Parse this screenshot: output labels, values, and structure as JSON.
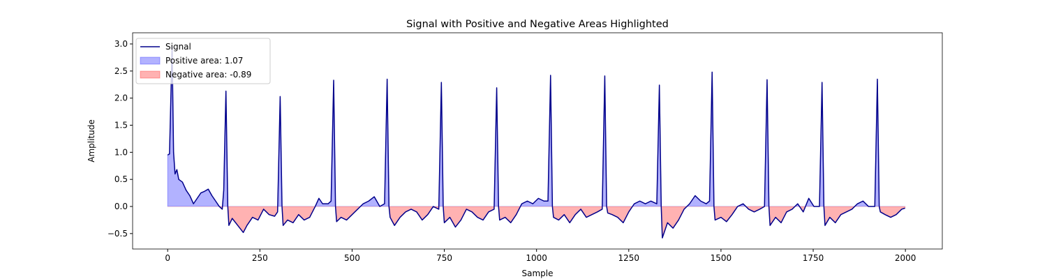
{
  "chart_data": {
    "type": "line",
    "title": "Signal with Positive and Negative Areas Highlighted",
    "xlabel": "Sample",
    "ylabel": "Amplitude",
    "xlim": [
      -95,
      2100
    ],
    "ylim": [
      -0.785,
      3.206
    ],
    "xticks": [
      0,
      250,
      500,
      750,
      1000,
      1250,
      1500,
      1750,
      2000
    ],
    "yticks": [
      {
        "value": -0.5,
        "label": "−0.5"
      },
      {
        "value": 0,
        "label": "0.0"
      },
      {
        "value": 0.5,
        "label": "0.5"
      },
      {
        "value": 1,
        "label": "1.0"
      },
      {
        "value": 1.5,
        "label": "1.5"
      },
      {
        "value": 2,
        "label": "2.0"
      },
      {
        "value": 2.5,
        "label": "2.5"
      },
      {
        "value": 3,
        "label": "3.0"
      }
    ],
    "legend": "upper left",
    "x": [
      0,
      5,
      12,
      16,
      20,
      25,
      30,
      40,
      50,
      60,
      70,
      80,
      90,
      100,
      110,
      120,
      130,
      140,
      148,
      152,
      158,
      163,
      166,
      175,
      190,
      205,
      215,
      230,
      245,
      260,
      275,
      290,
      298,
      305,
      310,
      313,
      325,
      340,
      355,
      370,
      385,
      400,
      410,
      420,
      435,
      443,
      450,
      455,
      458,
      470,
      485,
      500,
      515,
      530,
      545,
      560,
      575,
      588,
      595,
      600,
      603,
      615,
      630,
      645,
      660,
      675,
      690,
      705,
      720,
      735,
      742,
      747,
      750,
      765,
      780,
      795,
      810,
      825,
      840,
      855,
      870,
      885,
      892,
      897,
      900,
      915,
      930,
      945,
      960,
      975,
      990,
      1005,
      1020,
      1031,
      1038,
      1043,
      1046,
      1060,
      1075,
      1090,
      1105,
      1120,
      1135,
      1150,
      1165,
      1178,
      1185,
      1190,
      1193,
      1205,
      1220,
      1235,
      1250,
      1265,
      1280,
      1295,
      1310,
      1326,
      1333,
      1338,
      1341,
      1355,
      1370,
      1385,
      1400,
      1415,
      1430,
      1445,
      1460,
      1469,
      1476,
      1481,
      1484,
      1500,
      1515,
      1530,
      1545,
      1560,
      1575,
      1590,
      1605,
      1618,
      1625,
      1630,
      1633,
      1648,
      1663,
      1678,
      1693,
      1708,
      1723,
      1738,
      1752,
      1767,
      1774,
      1779,
      1782,
      1795,
      1810,
      1825,
      1840,
      1855,
      1870,
      1885,
      1900,
      1917,
      1924,
      1929,
      1932,
      1945,
      1960,
      1975,
      1990,
      1999
    ],
    "series": [
      {
        "name": "Signal",
        "color": "#00008b",
        "values": [
          0.95,
          0.97,
          2.95,
          1.0,
          0.6,
          0.68,
          0.5,
          0.45,
          0.3,
          0.2,
          0.05,
          0.15,
          0.25,
          0.28,
          0.32,
          0.2,
          0.1,
          0.0,
          -0.05,
          0.3,
          2.13,
          0.0,
          -0.35,
          -0.22,
          -0.35,
          -0.48,
          -0.35,
          -0.2,
          -0.25,
          -0.05,
          -0.15,
          -0.18,
          -0.1,
          2.03,
          0.0,
          -0.35,
          -0.25,
          -0.3,
          -0.15,
          -0.25,
          -0.2,
          0.0,
          0.15,
          0.05,
          0.05,
          0.1,
          2.33,
          0.0,
          -0.28,
          -0.2,
          -0.25,
          -0.15,
          -0.05,
          0.05,
          0.1,
          0.18,
          0.0,
          0.05,
          2.35,
          0.0,
          -0.2,
          -0.35,
          -0.2,
          -0.1,
          -0.05,
          -0.1,
          -0.25,
          -0.15,
          0.0,
          -0.05,
          2.29,
          0.0,
          -0.3,
          -0.2,
          -0.38,
          -0.25,
          -0.05,
          -0.1,
          -0.2,
          -0.25,
          -0.1,
          -0.05,
          2.19,
          0.0,
          -0.25,
          -0.2,
          -0.3,
          -0.15,
          0.05,
          0.1,
          0.05,
          0.15,
          0.1,
          0.1,
          2.42,
          0.0,
          -0.2,
          -0.25,
          -0.15,
          -0.3,
          -0.15,
          -0.05,
          -0.2,
          -0.15,
          -0.1,
          -0.05,
          2.41,
          0.0,
          -0.12,
          -0.15,
          -0.2,
          -0.3,
          -0.1,
          0.05,
          0.1,
          0.05,
          0.1,
          0.05,
          2.24,
          0.0,
          -0.58,
          -0.3,
          -0.4,
          -0.25,
          -0.05,
          0.05,
          0.2,
          0.1,
          0.05,
          0.1,
          2.48,
          0.0,
          -0.25,
          -0.2,
          -0.28,
          -0.15,
          0.0,
          0.05,
          -0.05,
          -0.1,
          -0.05,
          0.0,
          2.34,
          0.0,
          -0.35,
          -0.2,
          -0.3,
          -0.1,
          -0.05,
          0.05,
          -0.1,
          0.15,
          0.0,
          0.0,
          2.29,
          0.0,
          -0.35,
          -0.2,
          -0.3,
          -0.15,
          -0.1,
          -0.05,
          0.05,
          0.1,
          0.0,
          0.0,
          2.35,
          0.0,
          -0.1,
          -0.15,
          -0.2,
          -0.15,
          -0.05,
          -0.03
        ]
      }
    ],
    "fills": [
      {
        "name": "Positive area: 1.07",
        "color": "#0000ff",
        "side": "positive"
      },
      {
        "name": "Negative area: -0.89",
        "color": "#ff0000",
        "side": "negative"
      }
    ]
  }
}
